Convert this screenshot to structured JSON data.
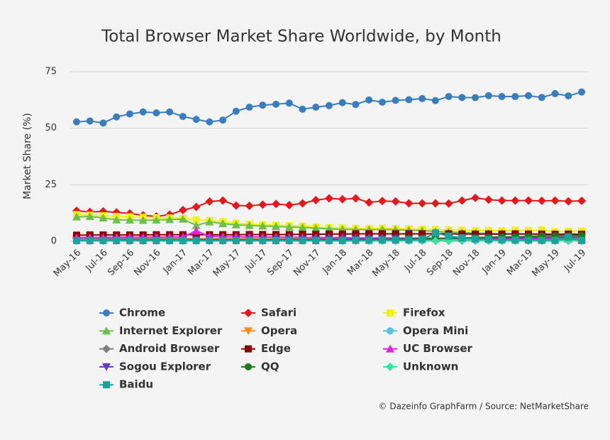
{
  "chart_data": {
    "type": "line",
    "title": "Total Browser Market Share Worldwide, by Month",
    "y_label": "Market Share (%)",
    "credit": "© Dazeinfo GraphFarm / Source: NetMarketShare",
    "categories": [
      "May-16",
      null,
      "Jul-16",
      null,
      "Sep-16",
      null,
      "Nov-16",
      null,
      "Jan-17",
      null,
      "Mar-17",
      null,
      "May-17",
      null,
      "Jul-17",
      null,
      "Sep-17",
      null,
      "Nov-17",
      null,
      "Jan-18",
      null,
      "Mar-18",
      null,
      "May-18",
      null,
      "Jul-18",
      null,
      "Sep-18",
      null,
      "Nov-18",
      null,
      "Jan-19",
      null,
      "Mar-19",
      null,
      "May-19",
      null,
      "Jul-19"
    ],
    "ylim": [
      0,
      75
    ],
    "yticks": [
      0,
      25,
      50,
      75
    ],
    "grid": true,
    "series": [
      {
        "name": "Chrome",
        "color": "#3a7dbf",
        "marker": "circle",
        "values": [
          52.8,
          53.2,
          52.3,
          55,
          56.3,
          57.2,
          56.8,
          57.2,
          55.2,
          53.9,
          52.8,
          53.6,
          57.5,
          59.3,
          60.2,
          60.6,
          61.1,
          58.4,
          59.3,
          60,
          61.3,
          60.5,
          62.5,
          61.5,
          62.3,
          62.6,
          63.1,
          62.2,
          64,
          63.6,
          63.5,
          64.4,
          64,
          64,
          64.4,
          63.6,
          65.3,
          64.3,
          66
        ]
      },
      {
        "name": "Safari",
        "color": "#e8161b",
        "marker": "diamond",
        "values": [
          13.5,
          13,
          13.2,
          12.8,
          12.3,
          11.5,
          11,
          11.8,
          13.8,
          15.2,
          17.6,
          18,
          15.8,
          15.7,
          16.2,
          16.5,
          16,
          16.8,
          18.2,
          19,
          18.6,
          19,
          17.2,
          17.8,
          17.6,
          16.8,
          16.8,
          16.8,
          16.7,
          18,
          19.2,
          18.4,
          18,
          18,
          18,
          17.9,
          18,
          17.7,
          17.9
        ]
      },
      {
        "name": "Firefox",
        "color": "#f0f016",
        "marker": "square",
        "values": [
          11.8,
          11.5,
          11.3,
          11,
          10.8,
          10.6,
          10.4,
          10.3,
          10.1,
          9.5,
          9.2,
          8.6,
          8,
          7.6,
          7.3,
          7.1,
          6.9,
          6.7,
          6.3,
          6,
          5.9,
          5.8,
          5.7,
          5.8,
          5.6,
          5.5,
          5.3,
          5.2,
          5,
          4.9,
          4.8,
          4.8,
          4.7,
          4.9,
          4.8,
          5,
          4.2,
          4.4,
          4.5
        ]
      },
      {
        "name": "Internet Explorer",
        "color": "#6cbf4a",
        "marker": "triangle",
        "values": [
          10.8,
          11,
          10.3,
          9.5,
          9.4,
          9.3,
          9.4,
          9.6,
          9.8,
          7,
          8.6,
          7.8,
          7.3,
          7,
          6.8,
          6.6,
          6.3,
          6.1,
          5.8,
          5.5,
          5.3,
          5.2,
          5.1,
          5.2,
          5.1,
          4.9,
          4.7,
          4.3,
          4.1,
          3.9,
          3.6,
          3.5,
          3.3,
          3.2,
          3.1,
          2.9,
          2.7,
          2.5,
          2.5
        ]
      },
      {
        "name": "Opera",
        "color": "#f2901f",
        "marker": "triangle-down",
        "values": [
          1.3,
          1.3,
          1.3,
          1.3,
          1.2,
          1.2,
          1.2,
          1.2,
          1.2,
          1.2,
          1.2,
          1.2,
          1.2,
          1.1,
          1.1,
          1.1,
          1.1,
          1.1,
          1.1,
          1.2,
          1.2,
          1.2,
          1.2,
          1.2,
          1.2,
          1.2,
          1.3,
          1.3,
          1.3,
          1.3,
          1.3,
          1.4,
          1.4,
          1.4,
          1.4,
          1.4,
          1.5,
          1.5,
          1.5
        ]
      },
      {
        "name": "Opera Mini",
        "color": "#5bc0de",
        "marker": "circle",
        "values": [
          0.9,
          0.9,
          0.9,
          0.9,
          0.9,
          0.9,
          0.9,
          0.9,
          0.9,
          0.9,
          0.8,
          0.8,
          0.8,
          0.8,
          0.8,
          0.8,
          0.8,
          0.8,
          0.8,
          0.8,
          0.8,
          0.8,
          0.9,
          0.9,
          0.9,
          0.9,
          1,
          1.1,
          1.2,
          0.9,
          0.9,
          0.9,
          0.8,
          0.8,
          0.8,
          0.8,
          0.8,
          0.8,
          0.8
        ]
      },
      {
        "name": "Android Browser",
        "color": "#7f7f7f",
        "marker": "diamond",
        "values": [
          1.2,
          1.2,
          1.1,
          1.1,
          1.1,
          1,
          1,
          1,
          1,
          0.9,
          0.9,
          0.9,
          0.8,
          0.8,
          0.8,
          0.7,
          0.7,
          0.7,
          0.7,
          0.6,
          0.6,
          0.6,
          0.6,
          0.5,
          0.5,
          0.5,
          0.5,
          0.5,
          0.4,
          0.4,
          0.4,
          0.4,
          0.4,
          0.3,
          0.3,
          0.3,
          0.3,
          0.3,
          0.3
        ]
      },
      {
        "name": "Edge",
        "color": "#8b0000",
        "marker": "square",
        "values": [
          2.7,
          2.8,
          2.8,
          2.8,
          2.8,
          2.8,
          2.9,
          2.9,
          2.9,
          2.9,
          2.9,
          2.9,
          2.9,
          3,
          3,
          3,
          3,
          3.1,
          3.1,
          3.2,
          3.2,
          3.3,
          3.3,
          3.3,
          3.3,
          3.3,
          3.3,
          3.4,
          3.3,
          3.2,
          3.2,
          3.2,
          3.2,
          3.3,
          3.2,
          3.2,
          3.1,
          3.2,
          3.1
        ]
      },
      {
        "name": "UC Browser",
        "color": "#e61ee6",
        "marker": "triangle",
        "values": [
          1.6,
          1.7,
          1.7,
          1.8,
          1.8,
          1.8,
          1.8,
          1.9,
          1.9,
          4.6,
          2.2,
          2,
          2,
          1.9,
          1.9,
          1.8,
          1.8,
          1.7,
          1.7,
          1.6,
          1.6,
          1.5,
          1.5,
          1.5,
          1.4,
          1.4,
          1.4,
          1.3,
          1.3,
          1.3,
          1.2,
          1.2,
          1.2,
          1.2,
          1.1,
          1.1,
          1.1,
          1,
          1
        ]
      },
      {
        "name": "Sogou Explorer",
        "color": "#6a3bbf",
        "marker": "triangle-down",
        "values": [
          0.4,
          0.4,
          0.4,
          0.5,
          0.5,
          0.5,
          0.5,
          0.5,
          0.5,
          0.6,
          0.6,
          0.6,
          0.6,
          0.7,
          0.7,
          0.7,
          0.8,
          0.8,
          0.8,
          0.9,
          0.9,
          1,
          1,
          1,
          1.1,
          1.1,
          1.2,
          1.2,
          1.3,
          1.3,
          1.4,
          1.4,
          1.5,
          1.5,
          1.6,
          1.6,
          1.7,
          1.7,
          1.8
        ]
      },
      {
        "name": "QQ",
        "color": "#1a7a1a",
        "marker": "circle",
        "values": [
          0.3,
          0.3,
          0.3,
          0.3,
          0.3,
          0.3,
          0.3,
          0.3,
          0.3,
          0.3,
          0.3,
          0.4,
          0.4,
          0.4,
          0.4,
          0.4,
          0.5,
          0.5,
          0.5,
          0.6,
          0.6,
          0.7,
          0.7,
          0.8,
          0.9,
          1,
          1.1,
          1.2,
          1.4,
          1.5,
          1.6,
          1.8,
          1.9,
          2,
          2.1,
          2.3,
          2.4,
          2.4,
          2.5
        ]
      },
      {
        "name": "Unknown",
        "color": "#3ee0a0",
        "marker": "diamond",
        "values": [
          0.2,
          0.2,
          0.2,
          0.2,
          0.2,
          0.2,
          0.2,
          0.2,
          0.2,
          0.2,
          0.2,
          0.2,
          0.2,
          0.2,
          0.2,
          0.2,
          0.2,
          0.2,
          0.2,
          0.2,
          0.2,
          0.2,
          0.2,
          0.2,
          0.2,
          0.2,
          0.2,
          0.2,
          0.2,
          0.2,
          0.2,
          0.2,
          0.2,
          0.2,
          0.2,
          0.2,
          0.2,
          0.2,
          0.2
        ]
      },
      {
        "name": "Baidu",
        "color": "#1ba39c",
        "marker": "square",
        "values": [
          0.3,
          0.3,
          0.3,
          0.3,
          0.3,
          0.3,
          0.3,
          0.3,
          0.3,
          0.3,
          0.3,
          0.3,
          0.3,
          0.3,
          0.3,
          0.3,
          0.3,
          0.3,
          0.3,
          0.3,
          0.3,
          0.4,
          0.4,
          0.5,
          0.5,
          0.6,
          0.8,
          3.7,
          2.3,
          1.5,
          1,
          0.8,
          0.6,
          0.5,
          0.5,
          0.4,
          0.4,
          1.8,
          0.3
        ]
      }
    ]
  }
}
